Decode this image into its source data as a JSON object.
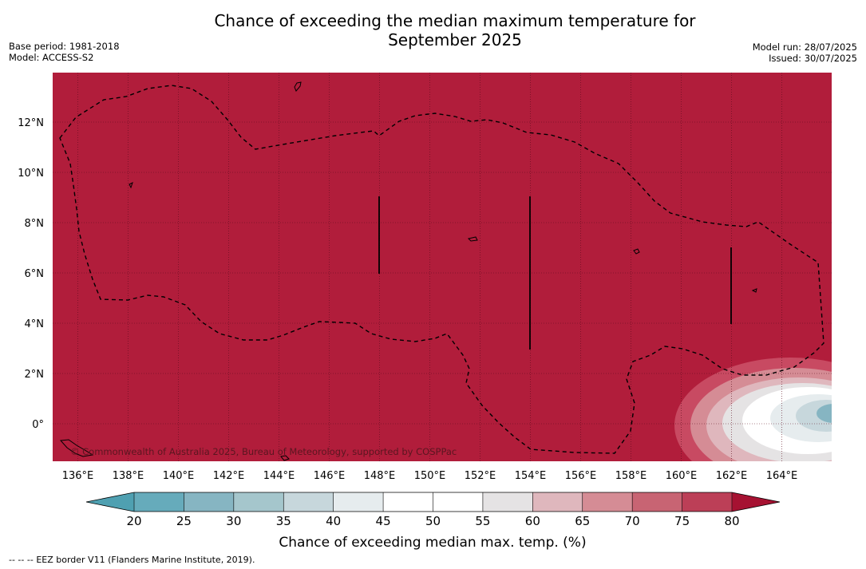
{
  "header": {
    "title_line1": "Chance of exceeding the median maximum temperature for",
    "title_line2": "September 2025",
    "base_period": "Base period: 1981-2018",
    "model": "Model: ACCESS-S2",
    "model_run": "Model run: 28/07/2025",
    "issued": "Issued: 30/07/2025"
  },
  "map": {
    "background_color": "#b11d3b",
    "copyright": "© Commonwealth of Australia 2025, Bureau of Meteorology, supported by COSPPac",
    "lon_ticks": [
      "136°E",
      "138°E",
      "140°E",
      "142°E",
      "144°E",
      "146°E",
      "148°E",
      "150°E",
      "152°E",
      "154°E",
      "156°E",
      "158°E",
      "160°E",
      "162°E",
      "164°E"
    ],
    "lat_ticks": [
      "12°N",
      "10°N",
      "8°N",
      "6°N",
      "4°N",
      "2°N",
      "0°"
    ]
  },
  "colorbar": {
    "ticks": [
      "20",
      "25",
      "30",
      "35",
      "40",
      "45",
      "50",
      "55",
      "60",
      "65",
      "70",
      "75",
      "80"
    ],
    "colors": [
      "#66abbb",
      "#86b5c2",
      "#a5c6cc",
      "#c7d7dc",
      "#e6ecee",
      "#ffffff",
      "#ffffff",
      "#e5e3e4",
      "#dfb7bd",
      "#d58c95",
      "#c86473",
      "#bc3f57"
    ],
    "under_color": "#4fa0b1",
    "over_color": "#a61232",
    "title": "Chance of exceeding median max. temp. (%)"
  },
  "footer": {
    "legend_line_sample": "--  --  --",
    "eez_note": "EEZ border V11 (Flanders Marine Institute, 2019)."
  }
}
